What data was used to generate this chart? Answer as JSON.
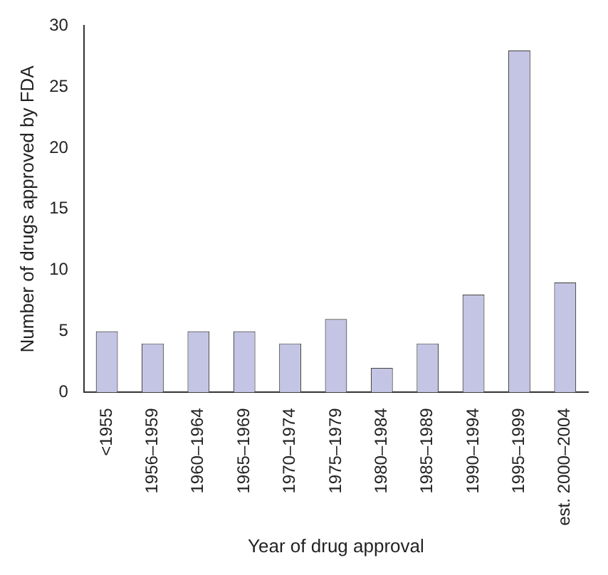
{
  "chart_data": {
    "type": "bar",
    "xlabel": "Year of drug approval",
    "ylabel": "Number of drugs approved by FDA",
    "categories": [
      "<1955",
      "1956–1959",
      "1960–1964",
      "1965–1969",
      "1970–1974",
      "1975–1979",
      "1980–1984",
      "1985–1989",
      "1990–1994",
      "1995–1999",
      "est. 2000–2004"
    ],
    "values": [
      5,
      4,
      5,
      5,
      4,
      6,
      2,
      4,
      8,
      28,
      9
    ],
    "color": "#c4c4e4",
    "ylim": [
      0,
      30
    ],
    "yticks": [
      0,
      5,
      10,
      15,
      20,
      25,
      30
    ],
    "grid": false,
    "legend": false
  }
}
